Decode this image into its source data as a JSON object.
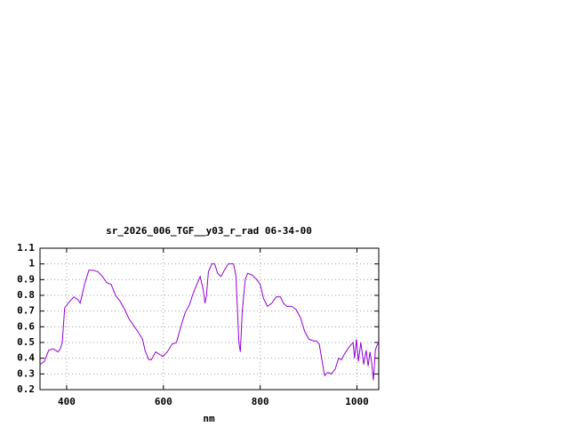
{
  "chart_data": {
    "type": "line",
    "title": "sr_2026_006_TGF__y03_r_rad 06-34-00",
    "x_label": "nm",
    "x": [
      345,
      354,
      363,
      372,
      382,
      387,
      391,
      396,
      406,
      415,
      424,
      428,
      437,
      446,
      455,
      465,
      474,
      483,
      492,
      501,
      511,
      520,
      529,
      538,
      547,
      557,
      562,
      570,
      575,
      584,
      594,
      599,
      608,
      618,
      627,
      636,
      645,
      654,
      660,
      669,
      676,
      682,
      686,
      689,
      693,
      700,
      706,
      712,
      719,
      726,
      734,
      745,
      750,
      756,
      759,
      763,
      769,
      774,
      783,
      793,
      800,
      807,
      815,
      824,
      833,
      842,
      848,
      855,
      865,
      874,
      883,
      892,
      901,
      911,
      916,
      922,
      927,
      933,
      940,
      947,
      955,
      962,
      968,
      973,
      981,
      986,
      992,
      995,
      999,
      1003,
      1008,
      1014,
      1019,
      1023,
      1027,
      1030,
      1034,
      1038,
      1041,
      1045
    ],
    "series": [
      {
        "color": "#9400d3",
        "values": [
          0.36,
          0.38,
          0.45,
          0.46,
          0.44,
          0.46,
          0.5,
          0.72,
          0.76,
          0.79,
          0.77,
          0.75,
          0.87,
          0.96,
          0.96,
          0.95,
          0.92,
          0.88,
          0.87,
          0.8,
          0.76,
          0.71,
          0.65,
          0.61,
          0.57,
          0.52,
          0.45,
          0.39,
          0.39,
          0.44,
          0.42,
          0.41,
          0.44,
          0.49,
          0.5,
          0.6,
          0.69,
          0.74,
          0.8,
          0.87,
          0.92,
          0.84,
          0.75,
          0.8,
          0.95,
          1.0,
          1.0,
          0.94,
          0.92,
          0.96,
          1.0,
          1.0,
          0.92,
          0.5,
          0.44,
          0.7,
          0.9,
          0.94,
          0.93,
          0.9,
          0.87,
          0.78,
          0.73,
          0.75,
          0.79,
          0.79,
          0.75,
          0.73,
          0.73,
          0.71,
          0.66,
          0.57,
          0.52,
          0.51,
          0.51,
          0.49,
          0.4,
          0.29,
          0.31,
          0.3,
          0.33,
          0.4,
          0.39,
          0.42,
          0.46,
          0.48,
          0.5,
          0.4,
          0.52,
          0.38,
          0.5,
          0.36,
          0.45,
          0.35,
          0.44,
          0.38,
          0.26,
          0.45,
          0.48,
          0.5
        ]
      }
    ],
    "xlim": [
      345,
      1045
    ],
    "ylim": [
      0.2,
      1.1
    ],
    "xticks": [
      400,
      600,
      800,
      1000
    ],
    "yticks": [
      0.2,
      0.3,
      0.4,
      0.5,
      0.6,
      0.7,
      0.8,
      0.9,
      1,
      1.1
    ],
    "grid": true
  }
}
